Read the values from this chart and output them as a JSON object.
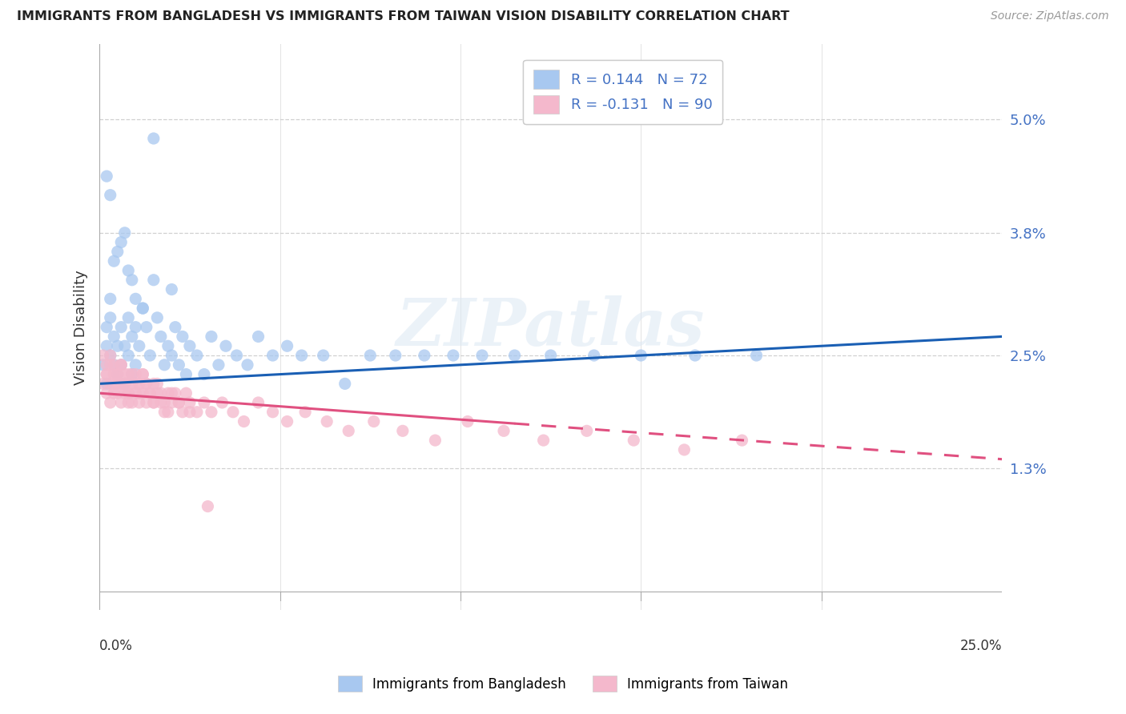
{
  "title": "IMMIGRANTS FROM BANGLADESH VS IMMIGRANTS FROM TAIWAN VISION DISABILITY CORRELATION CHART",
  "source": "Source: ZipAtlas.com",
  "ylabel": "Vision Disability",
  "ytick_vals": [
    0.013,
    0.025,
    0.038,
    0.05
  ],
  "ytick_labels": [
    "1.3%",
    "2.5%",
    "3.8%",
    "5.0%"
  ],
  "xlim": [
    0.0,
    0.25
  ],
  "ylim": [
    -0.002,
    0.058
  ],
  "color_bangladesh": "#a8c8f0",
  "color_taiwan": "#f4b8cc",
  "trendline_bangladesh_color": "#1a5fb4",
  "trendline_taiwan_color": "#e05080",
  "watermark": "ZIPatlas",
  "bg_color": "#ffffff",
  "grid_color": "#d0d0d0",
  "legend_r1_label": "R = 0.144   N = 72",
  "legend_r2_label": "R = -0.131   N = 90",
  "bottom_legend_1": "Immigrants from Bangladesh",
  "bottom_legend_2": "Immigrants from Taiwan",
  "trendline_bang_x0": 0.0,
  "trendline_bang_y0": 0.022,
  "trendline_bang_x1": 0.25,
  "trendline_bang_y1": 0.027,
  "trendline_taiwan_x0": 0.0,
  "trendline_taiwan_y0": 0.021,
  "trendline_taiwan_x1": 0.25,
  "trendline_taiwan_y1": 0.014,
  "trendline_taiwan_solid_end": 0.115,
  "bang_x": [
    0.001,
    0.002,
    0.002,
    0.002,
    0.003,
    0.003,
    0.003,
    0.004,
    0.004,
    0.005,
    0.005,
    0.006,
    0.006,
    0.007,
    0.007,
    0.008,
    0.008,
    0.009,
    0.009,
    0.01,
    0.01,
    0.011,
    0.012,
    0.013,
    0.014,
    0.015,
    0.016,
    0.017,
    0.018,
    0.019,
    0.02,
    0.021,
    0.022,
    0.023,
    0.024,
    0.025,
    0.027,
    0.029,
    0.031,
    0.033,
    0.035,
    0.038,
    0.041,
    0.044,
    0.048,
    0.052,
    0.056,
    0.062,
    0.068,
    0.075,
    0.082,
    0.09,
    0.098,
    0.106,
    0.115,
    0.125,
    0.137,
    0.15,
    0.165,
    0.182,
    0.002,
    0.003,
    0.004,
    0.005,
    0.006,
    0.007,
    0.008,
    0.009,
    0.01,
    0.012,
    0.015,
    0.02
  ],
  "bang_y": [
    0.024,
    0.026,
    0.028,
    0.022,
    0.025,
    0.029,
    0.031,
    0.024,
    0.027,
    0.023,
    0.026,
    0.024,
    0.028,
    0.022,
    0.026,
    0.025,
    0.029,
    0.023,
    0.027,
    0.024,
    0.028,
    0.026,
    0.03,
    0.028,
    0.025,
    0.033,
    0.029,
    0.027,
    0.024,
    0.026,
    0.025,
    0.028,
    0.024,
    0.027,
    0.023,
    0.026,
    0.025,
    0.023,
    0.027,
    0.024,
    0.026,
    0.025,
    0.024,
    0.027,
    0.025,
    0.026,
    0.025,
    0.025,
    0.022,
    0.025,
    0.025,
    0.025,
    0.025,
    0.025,
    0.025,
    0.025,
    0.025,
    0.025,
    0.025,
    0.025,
    0.044,
    0.042,
    0.035,
    0.036,
    0.037,
    0.038,
    0.034,
    0.033,
    0.031,
    0.03,
    0.048,
    0.032
  ],
  "taiwan_x": [
    0.001,
    0.001,
    0.002,
    0.002,
    0.002,
    0.003,
    0.003,
    0.003,
    0.004,
    0.004,
    0.004,
    0.005,
    0.005,
    0.005,
    0.006,
    0.006,
    0.006,
    0.007,
    0.007,
    0.007,
    0.008,
    0.008,
    0.008,
    0.009,
    0.009,
    0.01,
    0.01,
    0.011,
    0.011,
    0.012,
    0.012,
    0.013,
    0.013,
    0.014,
    0.015,
    0.015,
    0.016,
    0.017,
    0.018,
    0.019,
    0.02,
    0.021,
    0.022,
    0.023,
    0.024,
    0.025,
    0.027,
    0.029,
    0.031,
    0.034,
    0.037,
    0.04,
    0.044,
    0.048,
    0.052,
    0.057,
    0.063,
    0.069,
    0.076,
    0.084,
    0.093,
    0.102,
    0.112,
    0.123,
    0.135,
    0.148,
    0.162,
    0.178,
    0.002,
    0.003,
    0.004,
    0.005,
    0.006,
    0.007,
    0.008,
    0.009,
    0.01,
    0.011,
    0.012,
    0.013,
    0.014,
    0.015,
    0.016,
    0.017,
    0.018,
    0.019,
    0.02,
    0.022,
    0.025,
    0.03
  ],
  "taiwan_y": [
    0.022,
    0.025,
    0.021,
    0.024,
    0.023,
    0.022,
    0.025,
    0.02,
    0.023,
    0.021,
    0.024,
    0.022,
    0.023,
    0.021,
    0.022,
    0.024,
    0.02,
    0.023,
    0.021,
    0.022,
    0.02,
    0.023,
    0.021,
    0.022,
    0.02,
    0.023,
    0.021,
    0.022,
    0.02,
    0.021,
    0.023,
    0.022,
    0.02,
    0.021,
    0.022,
    0.02,
    0.021,
    0.02,
    0.019,
    0.021,
    0.02,
    0.021,
    0.02,
    0.019,
    0.021,
    0.02,
    0.019,
    0.02,
    0.019,
    0.02,
    0.019,
    0.018,
    0.02,
    0.019,
    0.018,
    0.019,
    0.018,
    0.017,
    0.018,
    0.017,
    0.016,
    0.018,
    0.017,
    0.016,
    0.017,
    0.016,
    0.015,
    0.016,
    0.023,
    0.024,
    0.022,
    0.023,
    0.024,
    0.022,
    0.021,
    0.023,
    0.022,
    0.021,
    0.023,
    0.022,
    0.021,
    0.02,
    0.022,
    0.021,
    0.02,
    0.019,
    0.021,
    0.02,
    0.019,
    0.009
  ]
}
